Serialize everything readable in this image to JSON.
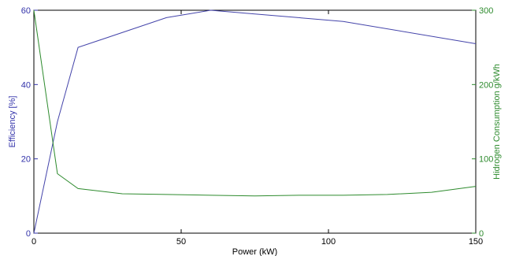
{
  "chart_data": {
    "type": "line",
    "xlabel": "Power (kW)",
    "xlim": [
      0,
      150
    ],
    "xticks": [
      0,
      50,
      100,
      150
    ],
    "y_left": {
      "label": "Efficiency [%]",
      "lim": [
        0,
        60
      ],
      "ticks": [
        0,
        20,
        40,
        60
      ],
      "color": "#3333aa"
    },
    "y_right": {
      "label": "Hidrogen Consumption g/kWh",
      "lim": [
        0,
        300
      ],
      "ticks": [
        0,
        100,
        200,
        300
      ],
      "color": "#2e8b2e"
    },
    "grid": false,
    "series": [
      {
        "axis": "left",
        "color": "#4444aa",
        "points": [
          [
            0,
            0
          ],
          [
            8,
            30
          ],
          [
            15,
            50
          ],
          [
            45,
            58
          ],
          [
            60,
            60
          ],
          [
            75,
            59
          ],
          [
            105,
            57
          ],
          [
            150,
            51
          ]
        ]
      },
      {
        "axis": "right",
        "color": "#2e8b2e",
        "points": [
          [
            0,
            300
          ],
          [
            8,
            80
          ],
          [
            15,
            60
          ],
          [
            30,
            53
          ],
          [
            45,
            52
          ],
          [
            60,
            51
          ],
          [
            75,
            50
          ],
          [
            90,
            51
          ],
          [
            105,
            51
          ],
          [
            120,
            52
          ],
          [
            135,
            55
          ],
          [
            150,
            63
          ]
        ]
      }
    ]
  }
}
